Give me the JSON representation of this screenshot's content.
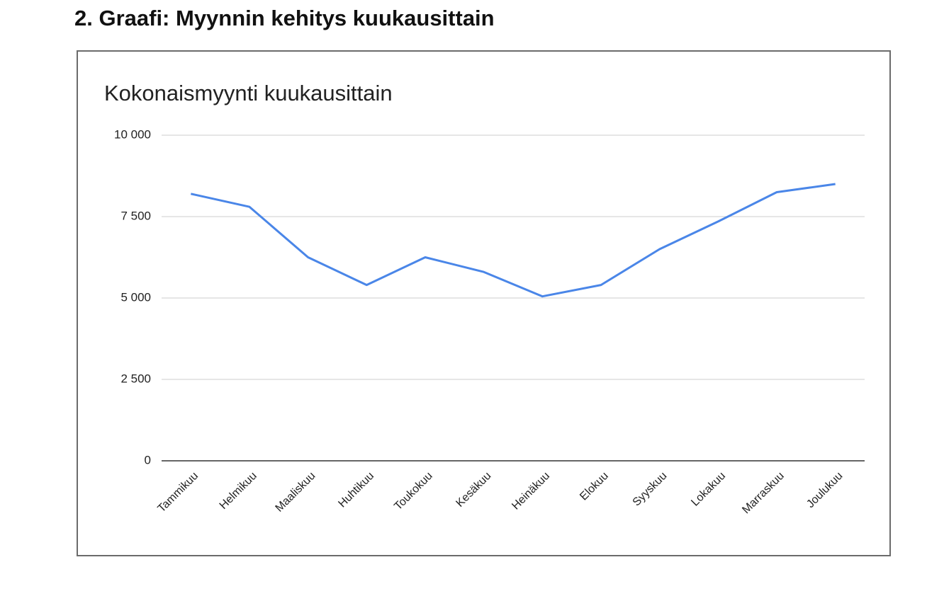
{
  "heading": "2. Graafi: Myynnin kehitys kuukausittain",
  "chart_data": {
    "type": "line",
    "title": "Kokonaismyynti kuukausittain",
    "categories": [
      "Tammikuu",
      "Helmikuu",
      "Maaliskuu",
      "Huhtikuu",
      "Toukokuu",
      "Kesäkuu",
      "Heinäkuu",
      "Elokuu",
      "Syyskuu",
      "Lokakuu",
      "Marraskuu",
      "Joulukuu"
    ],
    "values": [
      8200,
      7800,
      6250,
      5400,
      6250,
      5800,
      5050,
      5400,
      6500,
      7350,
      8250,
      8500
    ],
    "color": "#4a86e8",
    "ylim": [
      0,
      10000
    ],
    "yticks": [
      0,
      {
        "value": 2500,
        "label": "2 500"
      },
      {
        "value": 5000,
        "label": "5 000"
      },
      {
        "value": 7500,
        "label": "7 500"
      },
      {
        "value": 10000,
        "label": "10 000"
      }
    ],
    "grid": true
  }
}
